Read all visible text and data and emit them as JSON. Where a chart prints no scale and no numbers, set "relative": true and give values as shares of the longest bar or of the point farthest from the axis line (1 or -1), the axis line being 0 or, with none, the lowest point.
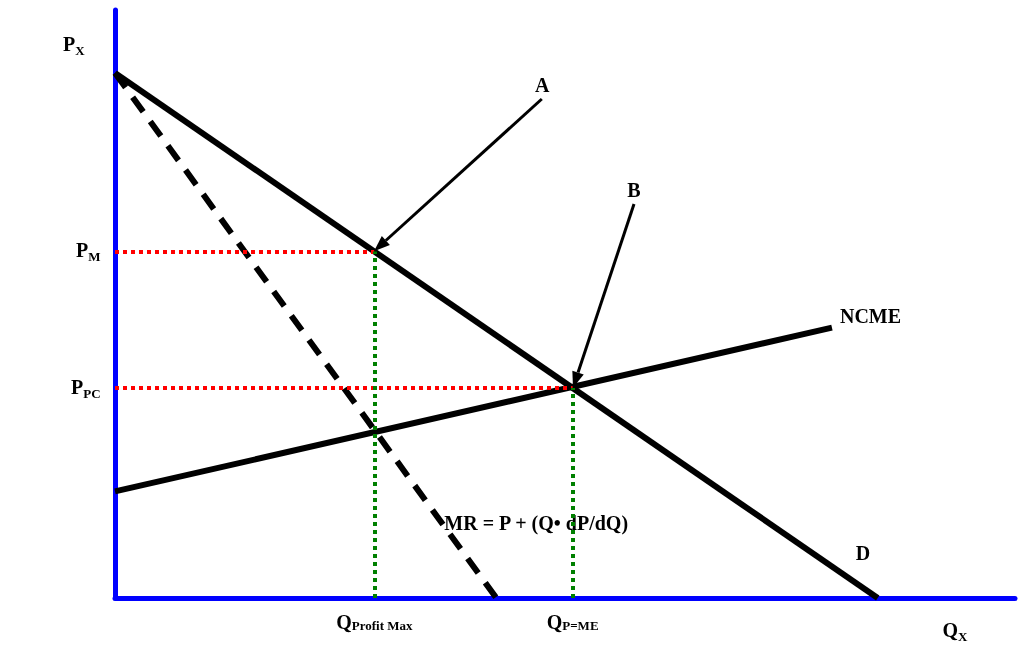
{
  "chart_data": {
    "type": "line",
    "relative": true,
    "xlabel": "Q$_{X}$",
    "ylabel": "P$_{X}$",
    "legend": false,
    "grid": false,
    "marker": "none",
    "categories": [
      null,
      null,
      null,
      null,
      null,
      null,
      null,
      null,
      null,
      null,
      null,
      null,
      null,
      null,
      null,
      null,
      null,
      "Q$_{Profit Max}$",
      null,
      null,
      null,
      null,
      null,
      null,
      null,
      null,
      null,
      null,
      null,
      null,
      "Q$_{P=ME}$",
      null,
      null,
      null,
      null,
      null,
      null,
      null,
      null,
      null,
      null,
      null,
      null,
      null,
      null,
      null,
      null,
      null,
      null,
      null,
      null,
      null,
      null,
      null,
      null,
      null,
      null,
      null,
      null,
      null
    ],
    "series": [
      {
        "name": "D",
        "color": "#000000",
        "line_style": "solid",
        "values": [
          1,
          null,
          null,
          null,
          null,
          null,
          null,
          null,
          null,
          null,
          null,
          null,
          null,
          null,
          null,
          null,
          null,
          null,
          null,
          null,
          null,
          null,
          null,
          null,
          null,
          null,
          null,
          null,
          null,
          null,
          null,
          null,
          null,
          null,
          null,
          null,
          null,
          null,
          null,
          null,
          null,
          null,
          null,
          null,
          null,
          null,
          null,
          null,
          null,
          null,
          0,
          null,
          null,
          null,
          null,
          null,
          null,
          null,
          null,
          null
        ]
      },
      {
        "name": "MR = P + (Q• dP/dQ)",
        "color": "#000000",
        "line_style": "dashed",
        "values": [
          1,
          null,
          null,
          null,
          null,
          null,
          null,
          null,
          null,
          null,
          null,
          null,
          null,
          null,
          null,
          null,
          null,
          null,
          null,
          null,
          null,
          null,
          null,
          null,
          null,
          0,
          null,
          null,
          null,
          null,
          null,
          null,
          null,
          null,
          null,
          null,
          null,
          null,
          null,
          null,
          null,
          null,
          null,
          null,
          null,
          null,
          null,
          null,
          null,
          null,
          null,
          null,
          null,
          null,
          null,
          null,
          null,
          null,
          null,
          null
        ]
      },
      {
        "name": "NCME",
        "color": "#000000",
        "line_style": "solid",
        "values": [
          0.203,
          null,
          null,
          null,
          null,
          null,
          null,
          null,
          null,
          null,
          null,
          null,
          null,
          null,
          null,
          null,
          null,
          null,
          null,
          null,
          null,
          null,
          null,
          null,
          null,
          null,
          null,
          null,
          null,
          null,
          null,
          null,
          null,
          null,
          null,
          null,
          null,
          null,
          null,
          null,
          null,
          null,
          null,
          null,
          null,
          null,
          null,
          0.515,
          null,
          null,
          null,
          null,
          null,
          null,
          null,
          null,
          null,
          null,
          null,
          null
        ]
      }
    ],
    "ref_lines": [
      {
        "axis": "y",
        "value": 0.66,
        "label": "P$_{M}$",
        "color": "#ff0000",
        "line_style": "dotted"
      },
      {
        "axis": "y",
        "value": 0.4,
        "label": "P$_{PC}$",
        "color": "#ff0000",
        "line_style": "dotted"
      },
      {
        "axis": "x",
        "value": "Q$_{Profit Max}$",
        "color": "#008000",
        "line_style": "dotted"
      },
      {
        "axis": "x",
        "value": "Q$_{P=ME}$",
        "color": "#008000",
        "line_style": "dotted"
      }
    ],
    "annotations": [
      "A",
      "B"
    ]
  }
}
